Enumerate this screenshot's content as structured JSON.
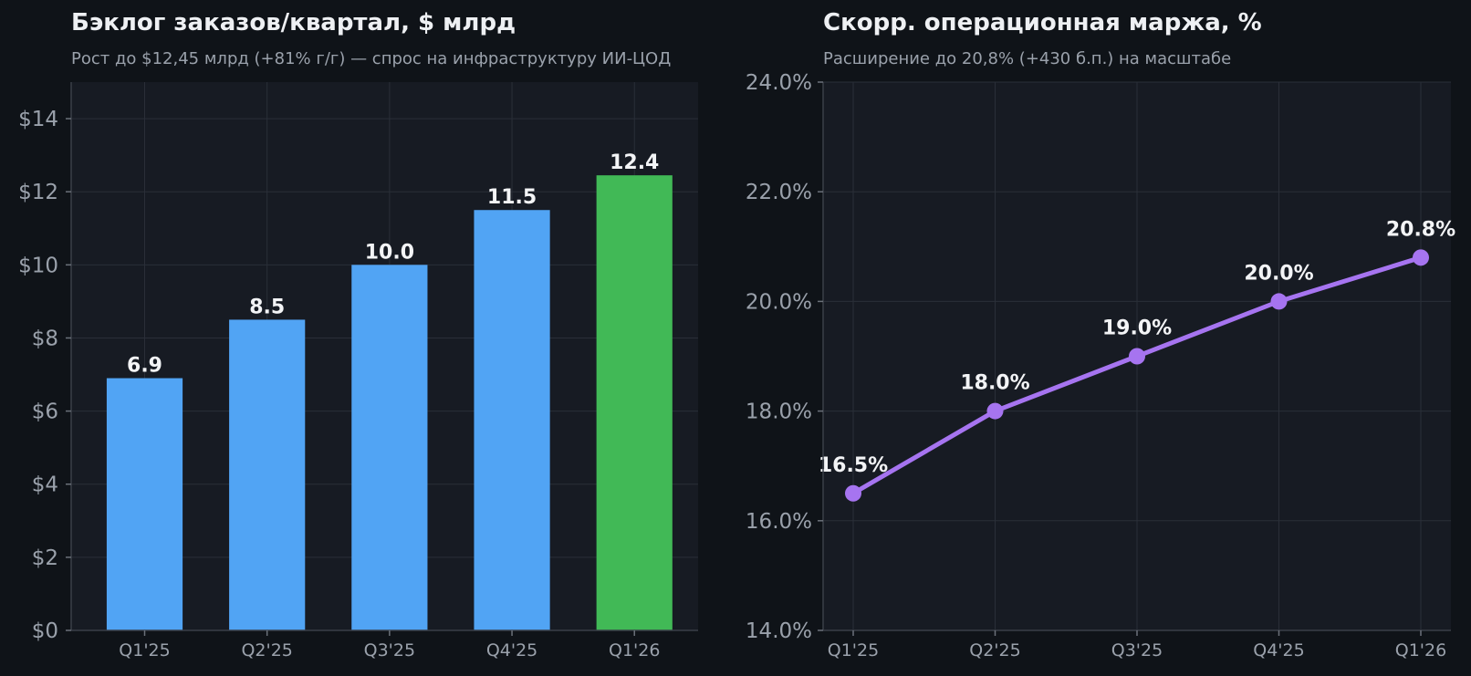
{
  "chart_data": [
    {
      "type": "bar",
      "title": "Бэклог заказов/квартал, $ млрд",
      "subtitle": "Рост до $12,45 млрд (+81% г/г) — спрос на инфраструктуру ИИ-ЦОД",
      "categories": [
        "Q1'25",
        "Q2'25",
        "Q3'25",
        "Q4'25",
        "Q1'26"
      ],
      "values": [
        6.9,
        8.5,
        10.0,
        11.5,
        12.45
      ],
      "data_labels": [
        "6.9",
        "8.5",
        "10.0",
        "11.5",
        "12.4"
      ],
      "bar_colors": [
        "#51a4f4",
        "#51a4f4",
        "#51a4f4",
        "#51a4f4",
        "#41b956"
      ],
      "ylim": [
        0,
        15
      ],
      "yticks": [
        0,
        2,
        4,
        6,
        8,
        10,
        12,
        14
      ],
      "ytick_labels": [
        "$0",
        "$2",
        "$4",
        "$6",
        "$8",
        "$10",
        "$12",
        "$14"
      ],
      "grid": true
    },
    {
      "type": "line",
      "title": "Скорр. операционная маржа, %",
      "subtitle": "Расширение до 20,8% (+430 б.п.) на масштабе",
      "categories": [
        "Q1'25",
        "Q2'25",
        "Q3'25",
        "Q4'25",
        "Q1'26"
      ],
      "values": [
        16.5,
        18.0,
        19.0,
        20.0,
        20.8
      ],
      "data_labels": [
        "16.5%",
        "18.0%",
        "19.0%",
        "20.0%",
        "20.8%"
      ],
      "line_color": "#a674f0",
      "ylim": [
        14,
        24
      ],
      "yticks": [
        14,
        16,
        18,
        20,
        22,
        24
      ],
      "ytick_labels": [
        "14.0%",
        "16.0%",
        "18.0%",
        "20.0%",
        "22.0%",
        "24.0%"
      ],
      "grid": true
    }
  ],
  "colors": {
    "background": "#0f1318",
    "plot_background": "#171b23",
    "grid": "#2a2f38",
    "text": "#eef0f3",
    "muted_text": "#9aa1ab"
  }
}
